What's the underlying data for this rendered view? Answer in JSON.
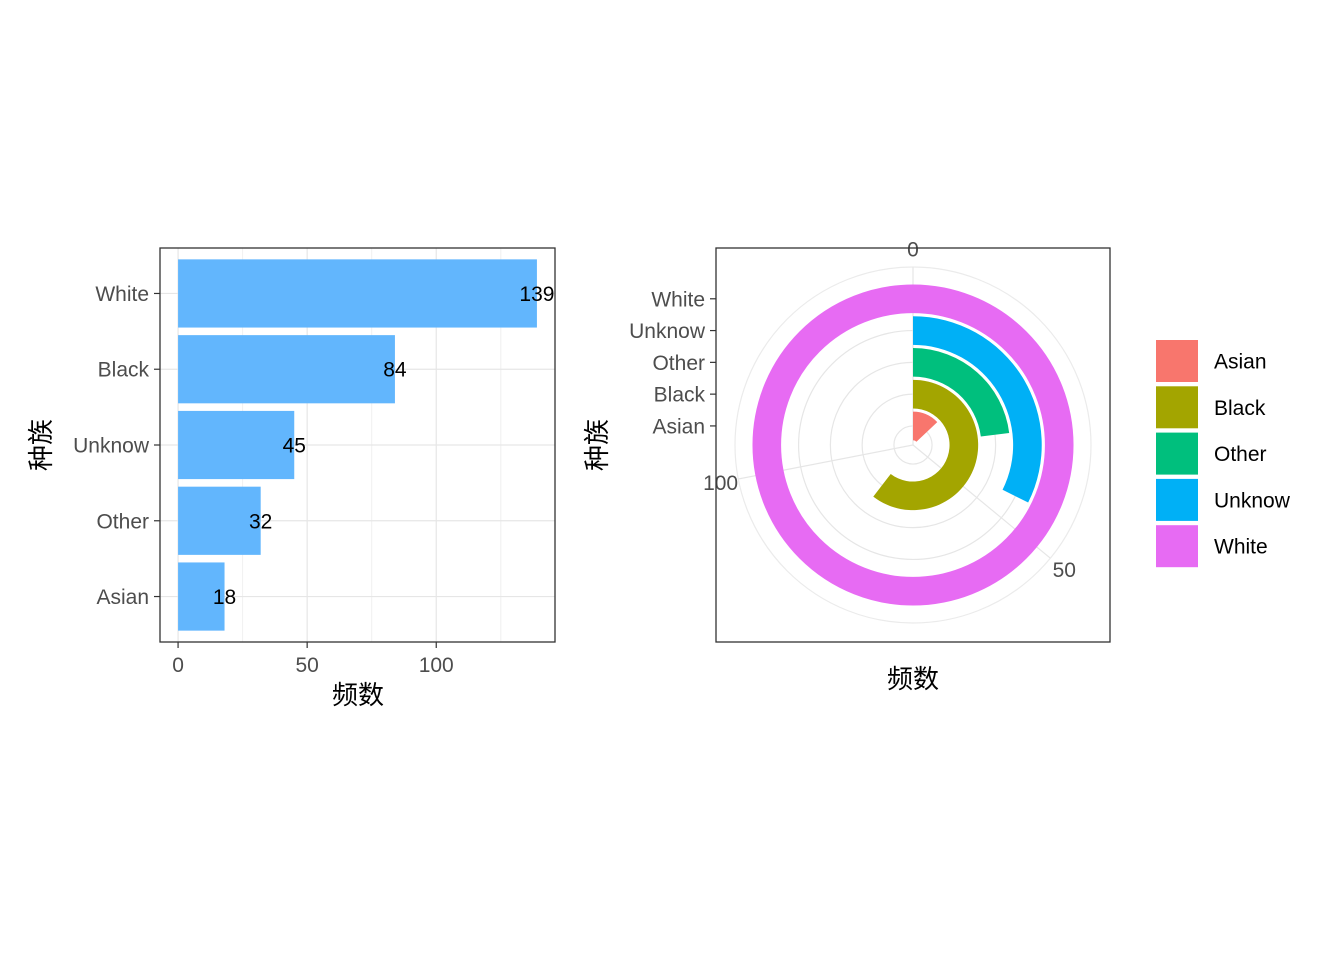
{
  "chart_data": [
    {
      "type": "bar",
      "orientation": "horizontal",
      "categories": [
        "White",
        "Black",
        "Unknow",
        "Other",
        "Asian"
      ],
      "values": [
        139,
        84,
        45,
        32,
        18
      ],
      "data_labels": [
        "139",
        "84",
        "45",
        "32",
        "18"
      ],
      "xlabel": "频数",
      "ylabel": "种族",
      "xticks": [
        0,
        50,
        100
      ],
      "xtick_labels": [
        "0",
        "50",
        "100"
      ],
      "xlim": [
        -7,
        146
      ],
      "grid": true,
      "bar_color": "#62b6fd"
    },
    {
      "type": "bar",
      "coord": "polar",
      "note_free": true,
      "categories": [
        "Asian",
        "Black",
        "Other",
        "Unknow",
        "White"
      ],
      "values": [
        18,
        84,
        32,
        45,
        139
      ],
      "theta_ticks": [
        0,
        50,
        100
      ],
      "theta_tick_labels": [
        "0",
        "50",
        "100"
      ],
      "theta_max": 139,
      "xlabel": "频数",
      "ylabel": "种族",
      "grid": true,
      "legend": {
        "placement": "right",
        "items": [
          {
            "label": "Asian",
            "color": "#f8766d"
          },
          {
            "label": "Black",
            "color": "#a3a500"
          },
          {
            "label": "Other",
            "color": "#00bf7d"
          },
          {
            "label": "Unknow",
            "color": "#00b0f6"
          },
          {
            "label": "White",
            "color": "#e76bf3"
          }
        ]
      }
    }
  ]
}
